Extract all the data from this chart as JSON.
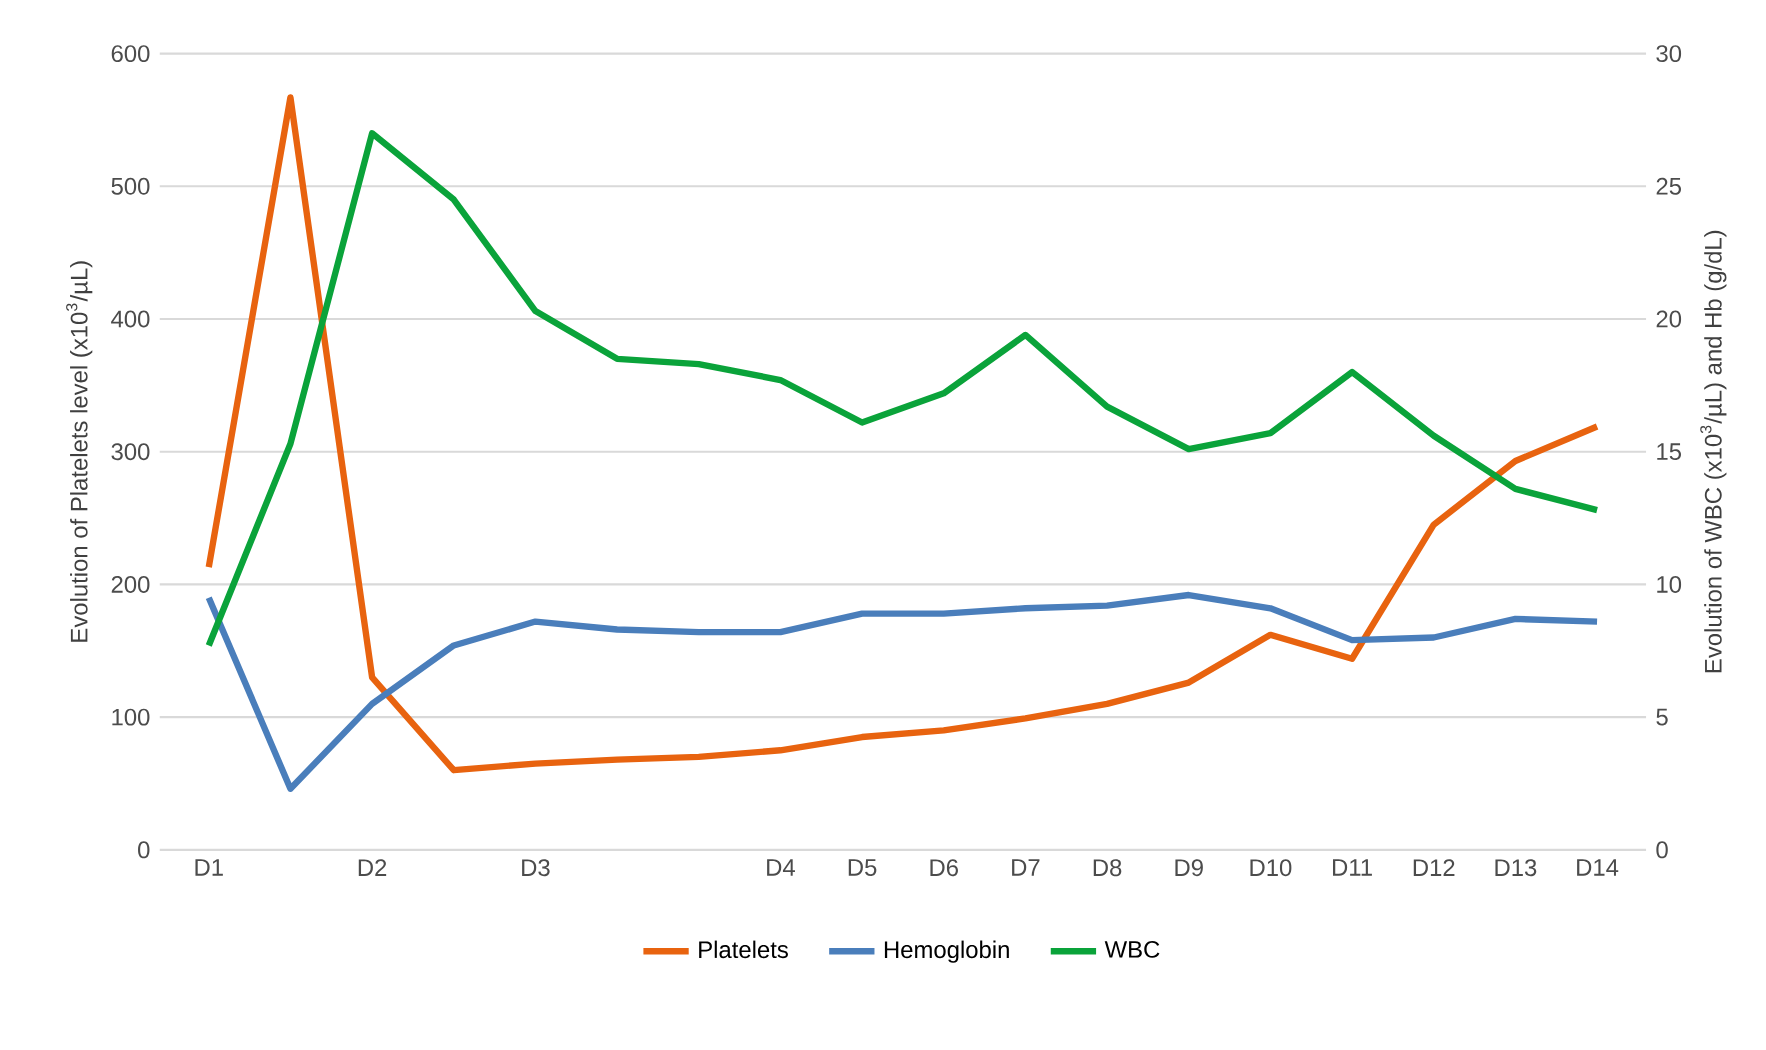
{
  "chart_data": {
    "type": "line",
    "categories": [
      "D1",
      null,
      "D2",
      null,
      "D3",
      null,
      null,
      "D4",
      "D5",
      "D6",
      "D7",
      "D8",
      "D9",
      "D10",
      "D11",
      "D12",
      "D13",
      "D14"
    ],
    "ylabel": "Evolution of Platelets level (x10$^{3}$/µL)",
    "y2label": "Evolution of WBC (x10$^{3}$/µL) and Hb (g/dL)",
    "ylim": [
      0,
      600
    ],
    "yticks": [
      0,
      100,
      200,
      300,
      400,
      500,
      600
    ],
    "y2lim": [
      0,
      30
    ],
    "y2ticks": [
      0,
      5,
      10,
      15,
      20,
      25,
      30
    ],
    "grid": "y",
    "legend": "bottom",
    "series": [
      {
        "name": "Platelets",
        "color": "#e8630f",
        "values": [
          213,
          567,
          130,
          60,
          65,
          68,
          70,
          75,
          85,
          90,
          99,
          110,
          126,
          162,
          144,
          245,
          293,
          319
        ]
      },
      {
        "name": "Hemoglobin",
        "color": "#4a7ebb",
        "axis": "y2",
        "values": [
          9.5,
          2.3,
          5.5,
          7.7,
          8.6,
          8.3,
          8.2,
          8.2,
          8.9,
          8.9,
          9.1,
          9.2,
          9.6,
          9.1,
          7.9,
          8.0,
          8.7,
          8.6
        ]
      },
      {
        "name": "WBC",
        "color": "#0aa33a",
        "axis": "y2",
        "values": [
          7.7,
          15.3,
          27.0,
          24.5,
          20.3,
          18.5,
          18.3,
          17.7,
          16.1,
          17.2,
          19.4,
          16.7,
          15.1,
          15.7,
          18.0,
          15.6,
          13.6,
          12.8
        ]
      }
    ]
  }
}
